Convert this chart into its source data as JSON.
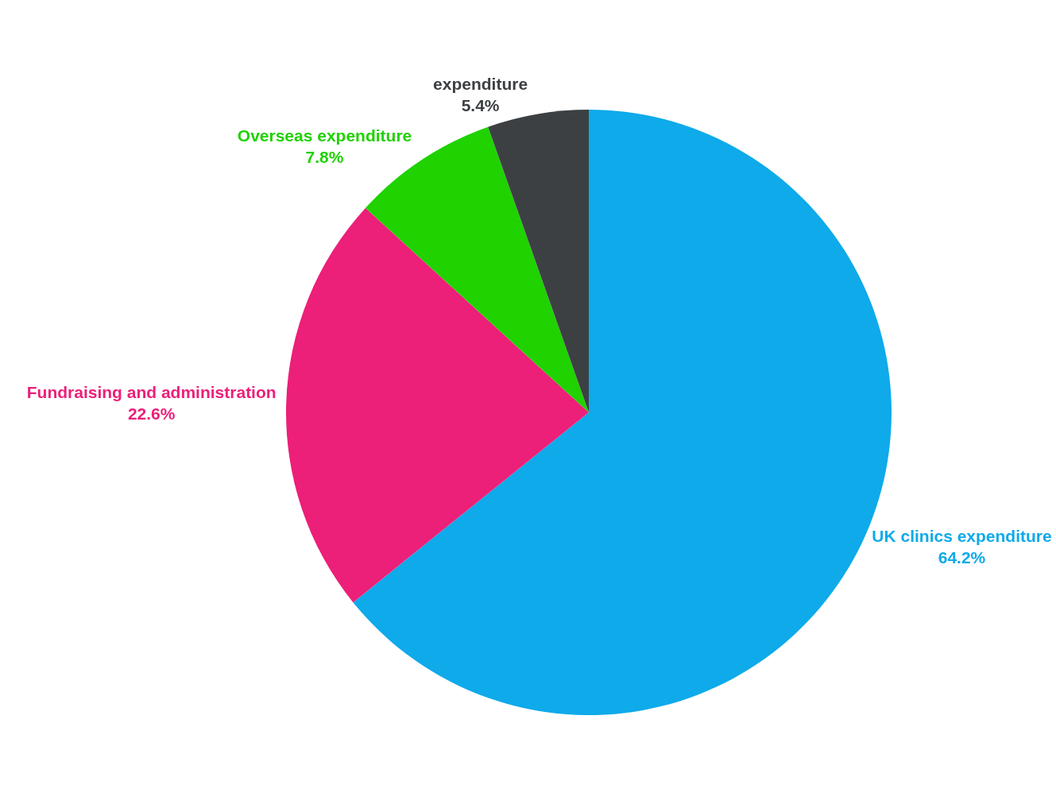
{
  "chart_data": {
    "type": "pie",
    "categories": [
      "UK clinics expenditure",
      "Fundraising and administration",
      "Overseas expenditure",
      "expenditure"
    ],
    "values": [
      64.2,
      22.6,
      7.8,
      5.4
    ],
    "value_labels": [
      "64.2%",
      "22.6%",
      "7.8%",
      "5.4%"
    ],
    "colors": [
      "#0eaaea",
      "#ec1f79",
      "#1fd200",
      "#3c4043"
    ],
    "legend": false
  }
}
